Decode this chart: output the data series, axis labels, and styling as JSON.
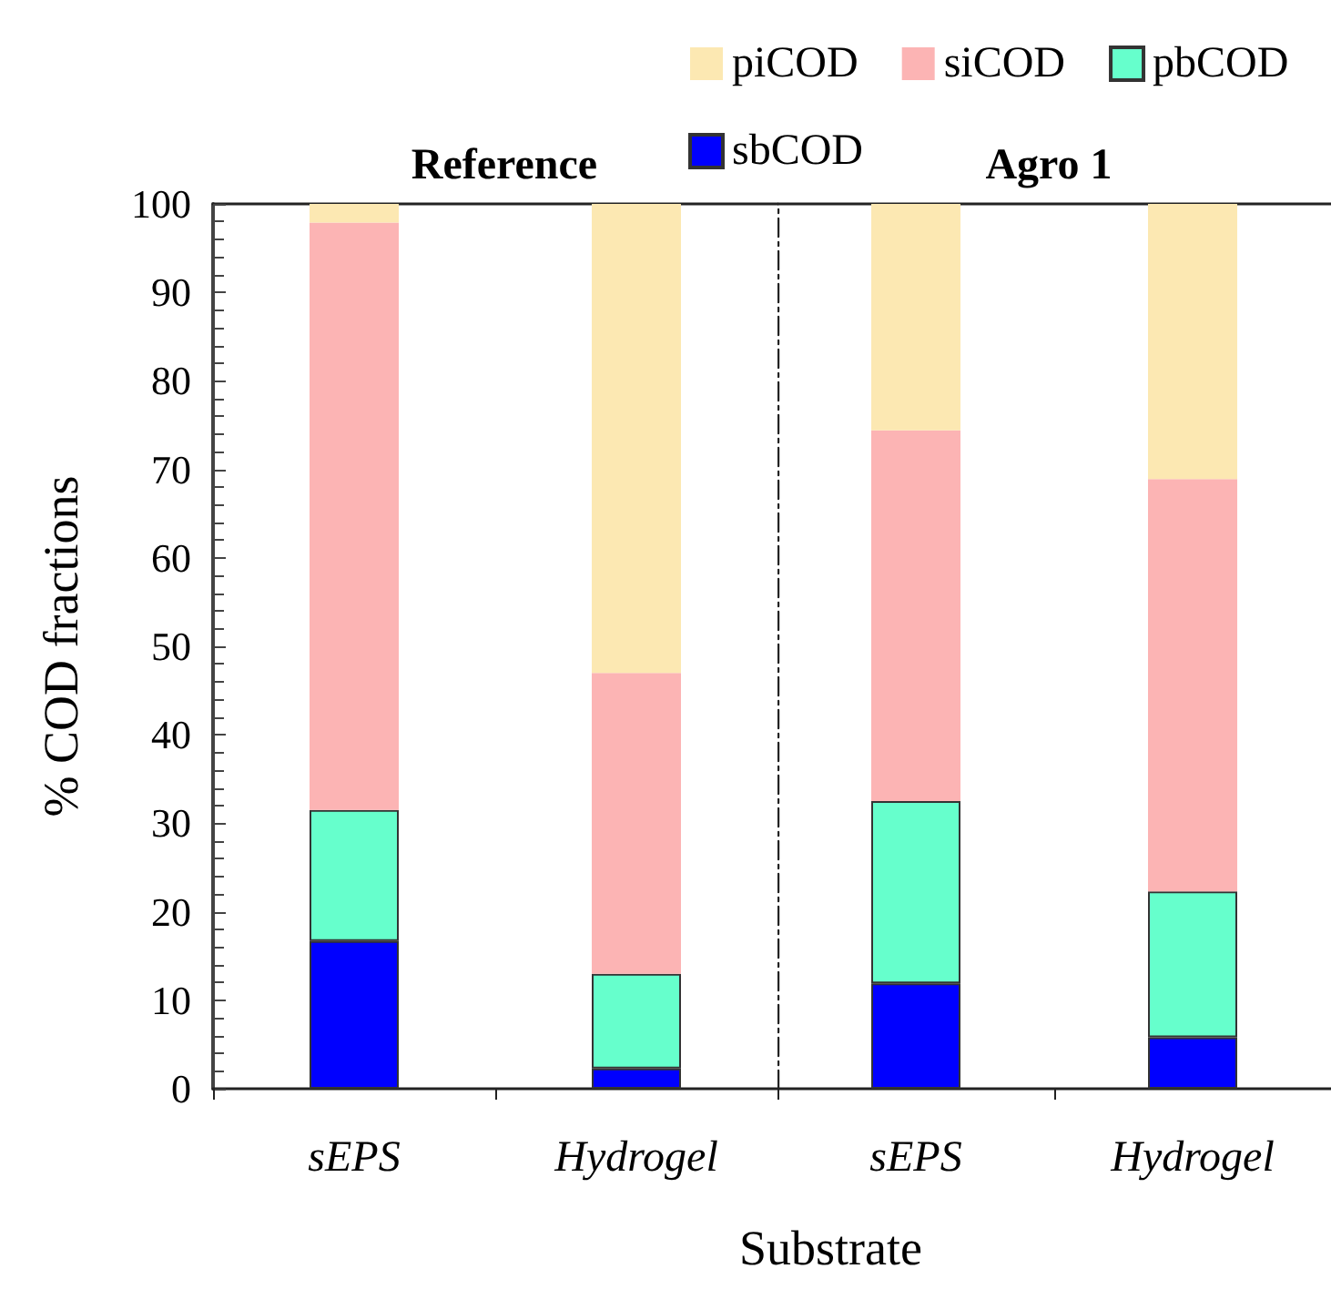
{
  "chart_data": [
    {
      "type": "bar",
      "title": "Reference",
      "ylabel": "% COD fractions",
      "xlabel": "Substrate",
      "categories": [
        "sEPS",
        "Hydrogel"
      ],
      "stacked": true,
      "legend": "top",
      "grid": false,
      "ylim": [
        0,
        100
      ],
      "yticks": [
        0,
        10,
        20,
        30,
        40,
        50,
        60,
        70,
        80,
        90,
        100
      ],
      "series": [
        {
          "name": "sbCOD",
          "color": "#0000ff",
          "values": [
            16.7,
            2.3
          ]
        },
        {
          "name": "pbCOD",
          "color": "#66ffcc",
          "values": [
            14.8,
            10.7
          ]
        },
        {
          "name": "siCOD",
          "color": "#fcb4b4",
          "values": [
            66.4,
            34.0
          ]
        },
        {
          "name": "piCOD",
          "color": "#fce8b2",
          "values": [
            2.1,
            53.0
          ]
        }
      ]
    },
    {
      "type": "bar",
      "title": "Agro 1",
      "categories": [
        "sEPS",
        "Hydrogel"
      ],
      "stacked": true,
      "grid": false,
      "tick_labels": "x",
      "ylim": [
        0,
        100
      ],
      "yticks": [
        0,
        10,
        20,
        30,
        40,
        50,
        60,
        70,
        80,
        90,
        100
      ],
      "series": [
        {
          "color": "#0000ff",
          "values": [
            11.9,
            5.8
          ]
        },
        {
          "color": "#66ffcc",
          "values": [
            20.6,
            16.5
          ]
        },
        {
          "color": "#fcb4b4",
          "values": [
            41.9,
            46.6
          ]
        },
        {
          "color": "#fce8b2",
          "values": [
            25.6,
            31.1
          ]
        }
      ]
    }
  ]
}
